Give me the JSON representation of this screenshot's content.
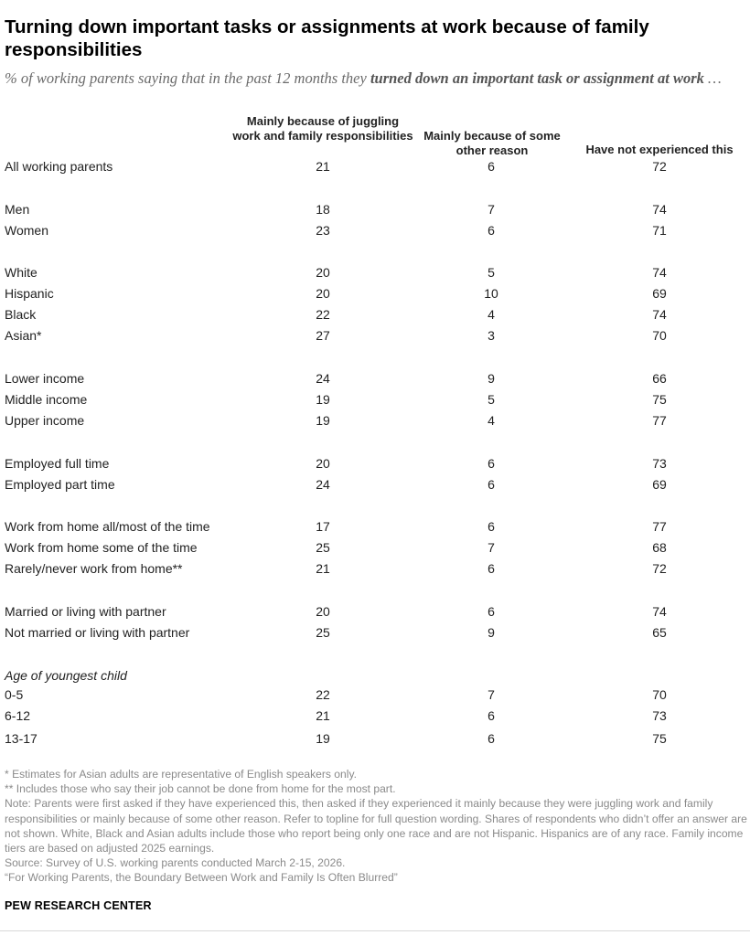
{
  "title": "Turning down important tasks or assignments at work because of family responsibilities",
  "subtitle": {
    "prefix": "% of working parents saying that in the past 12 months they ",
    "emphasis": "turned down an important task or assignment at work",
    "suffix": " …"
  },
  "chart_data": {
    "type": "table",
    "columns": [
      "Mainly because of juggling work and family responsibilities",
      "Mainly because of some other reason",
      "Have not experienced this"
    ],
    "rows": [
      {
        "label": "All working parents",
        "values": [
          21,
          6,
          72
        ]
      },
      {
        "label": "Men",
        "values": [
          18,
          7,
          74
        ]
      },
      {
        "label": "Women",
        "values": [
          23,
          6,
          71
        ]
      },
      {
        "label": "White",
        "values": [
          20,
          5,
          74
        ]
      },
      {
        "label": "Hispanic",
        "values": [
          20,
          10,
          69
        ]
      },
      {
        "label": "Black",
        "values": [
          22,
          4,
          74
        ]
      },
      {
        "label": "Asian*",
        "values": [
          27,
          3,
          70
        ]
      },
      {
        "label": "Lower income",
        "values": [
          24,
          9,
          66
        ]
      },
      {
        "label": "Middle income",
        "values": [
          19,
          5,
          75
        ]
      },
      {
        "label": "Upper income",
        "values": [
          19,
          4,
          77
        ]
      },
      {
        "label": "Employed full time",
        "values": [
          20,
          6,
          73
        ]
      },
      {
        "label": "Employed part time",
        "values": [
          24,
          6,
          69
        ]
      },
      {
        "label": "Work from home all/most of the time",
        "values": [
          17,
          6,
          77
        ]
      },
      {
        "label": "Work from home some of the time",
        "values": [
          25,
          7,
          68
        ]
      },
      {
        "label": "Rarely/never work from home**",
        "values": [
          21,
          6,
          72
        ]
      },
      {
        "label": "Married or living with partner",
        "values": [
          20,
          6,
          74
        ]
      },
      {
        "label": "Not married or living with partner",
        "values": [
          25,
          9,
          65
        ]
      },
      {
        "label": "0-5",
        "values": [
          22,
          7,
          70
        ]
      },
      {
        "label": "6-12",
        "values": [
          21,
          6,
          73
        ]
      },
      {
        "label": "13-17",
        "values": [
          19,
          6,
          75
        ]
      }
    ],
    "group_labels": [
      "Age of youngest child"
    ]
  },
  "notes": [
    "* Estimates for Asian adults are representative of English speakers only.",
    "** Includes those who say their job cannot be done from home for the most part.",
    "Note: Parents were first asked if they have experienced this, then asked if they experienced it mainly because they were juggling work and family responsibilities or mainly because of some other reason. Refer to topline for full question wording. Shares of respondents who didn’t offer an answer are not shown. White, Black and Asian adults include those who report being only one race and are not Hispanic. Hispanics are of any race. Family income tiers are based on adjusted 2025 earnings.",
    "Source: Survey of U.S. working parents conducted March 2-15, 2026.",
    "“For Working Parents, the Boundary Between Work and Family Is Often Blurred”"
  ],
  "brand": "PEW RESEARCH CENTER"
}
